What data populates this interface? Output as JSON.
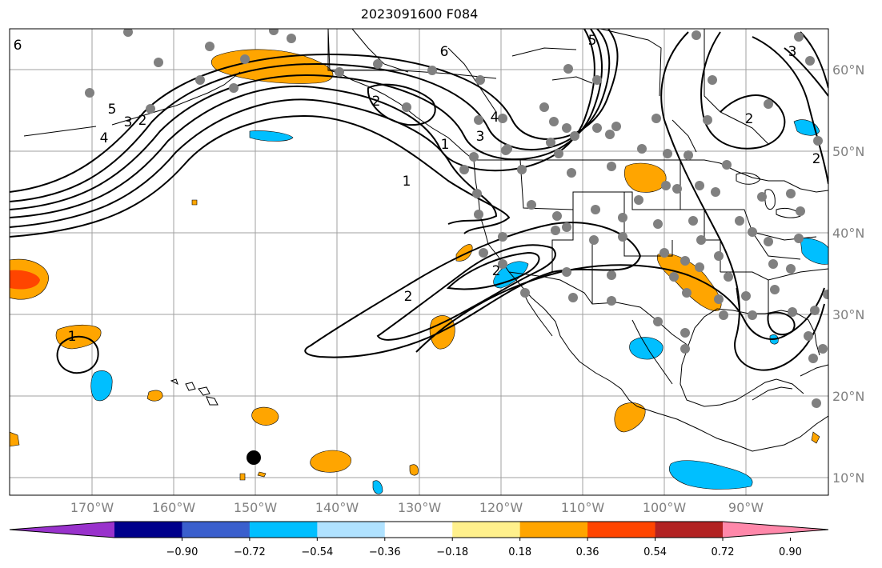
{
  "title": "2023091600 F084",
  "map": {
    "lat_labels": [
      "60°N",
      "50°N",
      "40°N",
      "30°N",
      "20°N",
      "10°N"
    ],
    "lon_labels": [
      "170°W",
      "160°W",
      "150°W",
      "140°W",
      "130°W",
      "120°W",
      "110°W",
      "100°W",
      "90°W"
    ],
    "contour_labels": [
      "6",
      "5",
      "4",
      "3",
      "2",
      "1",
      "6",
      "5",
      "4",
      "3",
      "2",
      "1",
      "2",
      "2",
      "2",
      "3",
      "2",
      "1"
    ],
    "colors": {
      "grid": "#a0a0a0",
      "coast": "#000000",
      "contour": "#000000",
      "station": "#808080",
      "marker": "#000000"
    }
  },
  "colorbar": {
    "ticks": [
      "−0.90",
      "−0.72",
      "−0.54",
      "−0.36",
      "−0.18",
      "0.18",
      "0.36",
      "0.54",
      "0.72",
      "0.90"
    ],
    "colors": [
      "#9932cc",
      "#00008b",
      "#3a5fcd",
      "#00bfff",
      "#b0e2ff",
      "#ffffff",
      "#fff08c",
      "#ffa500",
      "#ff4500",
      "#b22222",
      "#ff88aa"
    ]
  }
}
